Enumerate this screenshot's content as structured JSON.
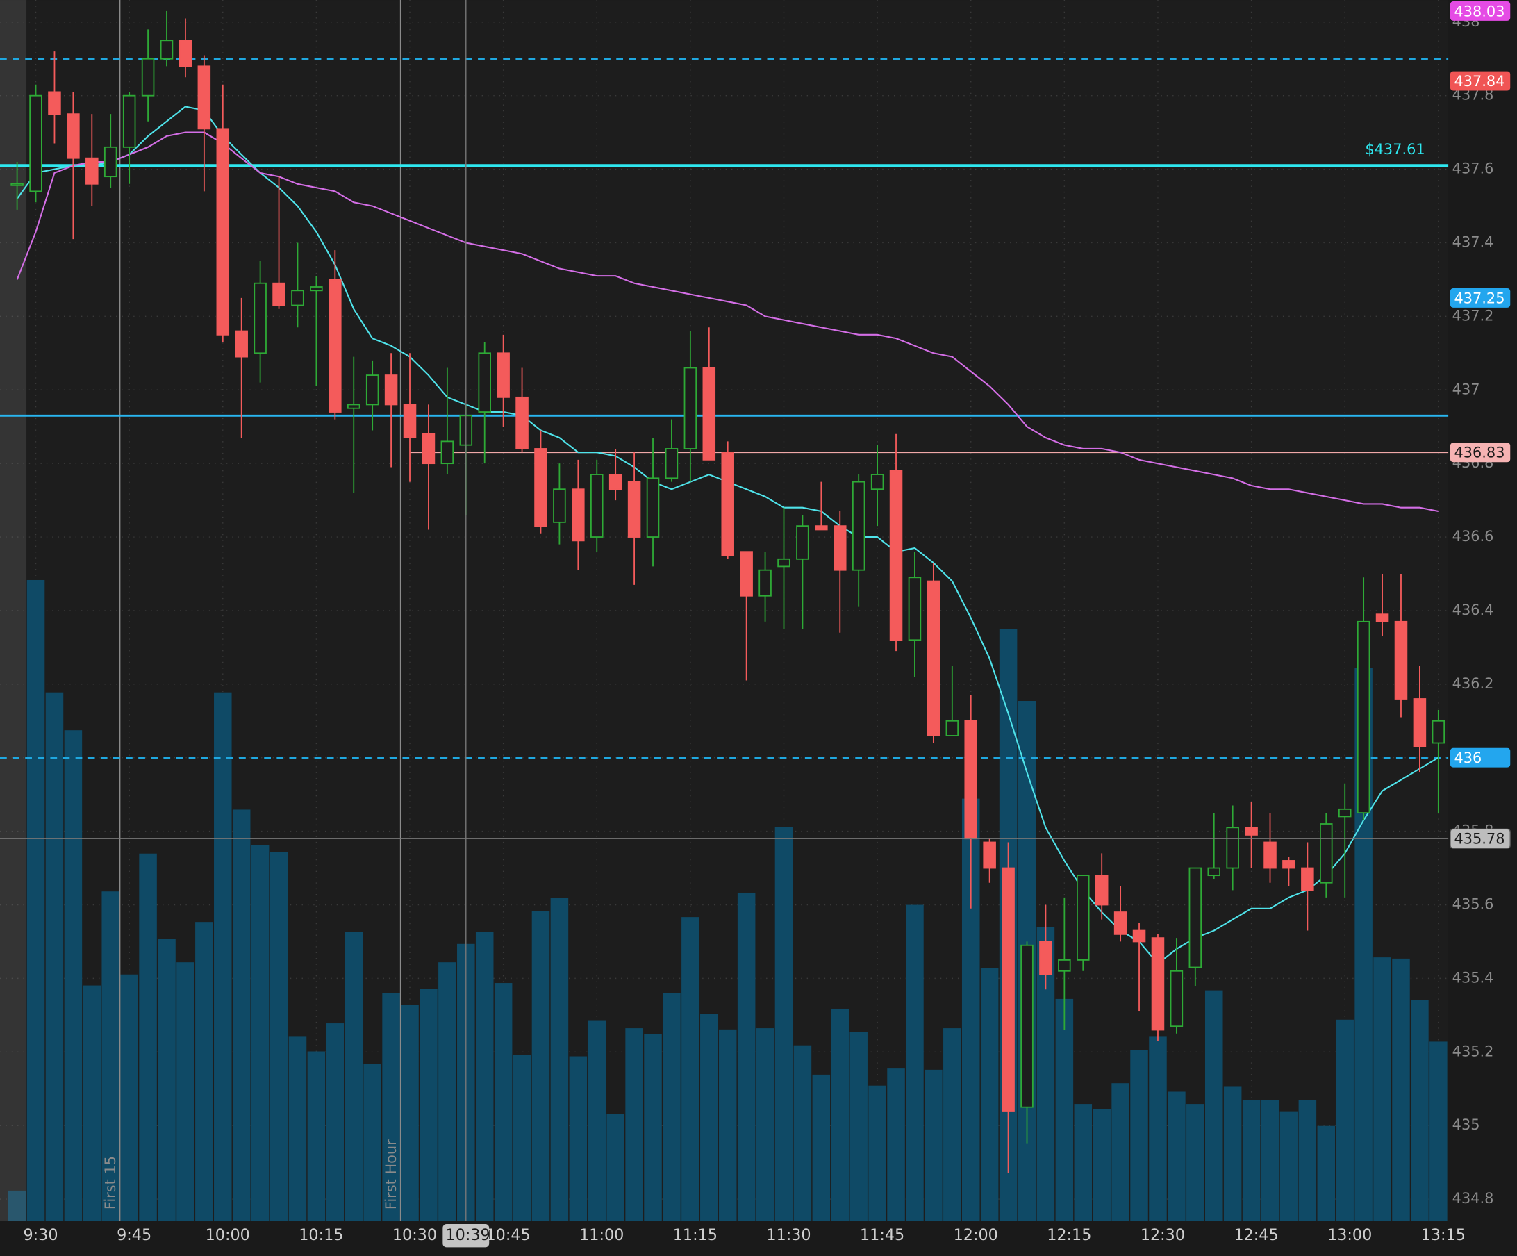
{
  "chart_data": {
    "type": "candlestick",
    "categories": [
      null,
      "9:30",
      null,
      null,
      null,
      null,
      "9:45",
      null,
      null,
      null,
      null,
      "10:00",
      null,
      null,
      null,
      null,
      "10:15",
      null,
      null,
      null,
      null,
      "10:30",
      null,
      null,
      null,
      null,
      "10:45",
      null,
      null,
      null,
      null,
      "11:00",
      null,
      null,
      null,
      null,
      "11:15",
      null,
      null,
      null,
      null,
      "11:30",
      null,
      null,
      null,
      null,
      "11:45",
      null,
      null,
      null,
      null,
      "12:00",
      null,
      null,
      null,
      null,
      "12:15",
      null,
      null,
      null,
      null,
      "12:30",
      null,
      null,
      null,
      null,
      "12:45",
      null,
      null,
      null,
      null,
      "13:00",
      null,
      null,
      null,
      null,
      "13:15"
    ],
    "open": [
      437.56,
      437.54,
      437.81,
      437.75,
      437.63,
      437.58,
      437.66,
      437.8,
      437.9,
      437.95,
      437.88,
      437.71,
      437.16,
      437.1,
      437.29,
      437.23,
      437.27,
      437.3,
      436.95,
      436.96,
      437.04,
      436.96,
      436.88,
      436.8,
      436.85,
      436.94,
      437.1,
      436.98,
      436.84,
      436.64,
      436.73,
      436.6,
      436.77,
      436.75,
      436.6,
      436.76,
      436.84,
      437.06,
      436.83,
      436.56,
      436.44,
      436.52,
      436.54,
      436.63,
      436.63,
      436.51,
      436.73,
      436.78,
      436.32,
      436.48,
      436.06,
      436.1,
      435.77,
      435.7,
      435.05,
      435.5,
      435.42,
      435.45,
      435.68,
      435.58,
      435.53,
      435.51,
      435.27,
      435.43,
      435.68,
      435.7,
      435.81,
      435.77,
      435.72,
      435.7,
      435.66,
      435.84,
      435.85,
      436.39,
      436.37,
      436.16,
      436.04
    ],
    "high": [
      437.62,
      437.83,
      437.92,
      437.81,
      437.75,
      437.75,
      437.81,
      437.98,
      438.03,
      438.01,
      437.91,
      437.83,
      437.25,
      437.35,
      437.58,
      437.4,
      437.31,
      437.38,
      437.09,
      437.08,
      437.1,
      437.1,
      436.96,
      437.06,
      436.96,
      437.13,
      437.15,
      437.06,
      436.89,
      436.8,
      436.81,
      436.81,
      436.84,
      436.83,
      436.87,
      436.92,
      437.16,
      437.17,
      436.86,
      436.56,
      436.56,
      436.68,
      436.66,
      436.75,
      436.67,
      436.77,
      436.85,
      436.88,
      436.56,
      436.53,
      436.25,
      436.17,
      435.78,
      435.77,
      435.5,
      435.6,
      435.62,
      435.68,
      435.74,
      435.65,
      435.55,
      435.52,
      435.51,
      435.7,
      435.85,
      435.87,
      435.88,
      435.85,
      435.73,
      435.77,
      435.85,
      435.93,
      436.49,
      436.5,
      436.5,
      436.25,
      436.13
    ],
    "low": [
      437.49,
      437.51,
      437.67,
      437.41,
      437.5,
      437.55,
      437.56,
      437.73,
      437.88,
      437.85,
      437.54,
      437.13,
      436.87,
      437.02,
      437.22,
      437.17,
      437.01,
      436.92,
      436.72,
      436.89,
      436.79,
      436.75,
      436.62,
      436.77,
      436.66,
      436.8,
      436.9,
      436.83,
      436.61,
      436.58,
      436.51,
      436.56,
      436.7,
      436.47,
      436.52,
      436.75,
      436.75,
      436.81,
      436.54,
      436.21,
      436.37,
      436.35,
      436.35,
      436.62,
      436.34,
      436.41,
      436.63,
      436.29,
      436.22,
      436.04,
      436.06,
      435.59,
      435.66,
      434.87,
      434.95,
      435.37,
      435.26,
      435.42,
      435.56,
      435.5,
      435.31,
      435.23,
      435.25,
      435.38,
      435.67,
      435.64,
      435.7,
      435.66,
      435.65,
      435.53,
      435.62,
      435.62,
      435.83,
      436.33,
      436.11,
      435.96,
      435.85
    ],
    "close": [
      437.56,
      437.8,
      437.75,
      437.63,
      437.56,
      437.66,
      437.8,
      437.9,
      437.95,
      437.88,
      437.71,
      437.15,
      437.09,
      437.29,
      437.23,
      437.27,
      437.28,
      436.94,
      436.96,
      437.04,
      436.96,
      436.87,
      436.8,
      436.86,
      436.93,
      437.1,
      436.98,
      436.84,
      436.63,
      436.73,
      436.59,
      436.77,
      436.73,
      436.6,
      436.76,
      436.84,
      437.06,
      436.81,
      436.55,
      436.44,
      436.51,
      436.54,
      436.63,
      436.62,
      436.51,
      436.75,
      436.77,
      436.32,
      436.49,
      436.06,
      436.1,
      435.78,
      435.7,
      435.04,
      435.49,
      435.41,
      435.45,
      435.68,
      435.6,
      435.52,
      435.5,
      435.26,
      435.42,
      435.7,
      435.7,
      435.81,
      435.79,
      435.7,
      435.7,
      435.64,
      435.82,
      435.86,
      436.37,
      436.37,
      436.16,
      436.03,
      436.1
    ],
    "volume": [
      2.5,
      52.5,
      43.3,
      40.2,
      19.3,
      27.0,
      20.2,
      30.1,
      23.1,
      21.2,
      24.5,
      43.3,
      33.7,
      30.8,
      30.2,
      15.1,
      13.9,
      16.2,
      23.7,
      12.9,
      18.7,
      17.7,
      19.0,
      21.2,
      22.7,
      23.7,
      19.5,
      13.6,
      25.4,
      26.5,
      13.5,
      16.4,
      8.8,
      15.8,
      15.3,
      18.7,
      24.9,
      17.0,
      15.7,
      26.9,
      15.8,
      32.3,
      14.4,
      12.0,
      17.4,
      15.5,
      11.1,
      12.5,
      25.9,
      12.4,
      15.8,
      34.6,
      20.7,
      48.5,
      42.6,
      24.1,
      18.2,
      9.6,
      9.2,
      11.3,
      14.0,
      15.1,
      10.6,
      9.6,
      18.9,
      11.0,
      9.9,
      9.9,
      9.0,
      9.9,
      7.8,
      16.5,
      45.3,
      21.6,
      21.5,
      18.1,
      14.7
    ],
    "overlays": [
      {
        "color": "#4fe3ea",
        "values": [
          437.52,
          437.59,
          437.6,
          437.61,
          437.61,
          437.62,
          437.64,
          437.69,
          437.73,
          437.77,
          437.76,
          437.69,
          437.64,
          437.59,
          437.55,
          437.5,
          437.43,
          437.34,
          437.22,
          437.14,
          437.12,
          437.09,
          437.04,
          436.98,
          436.96,
          436.94,
          436.94,
          436.93,
          436.89,
          436.87,
          436.83,
          436.83,
          436.82,
          436.79,
          436.75,
          436.73,
          436.75,
          436.77,
          436.75,
          436.73,
          436.71,
          436.68,
          436.68,
          436.67,
          436.63,
          436.6,
          436.6,
          436.56,
          436.57,
          436.53,
          436.48,
          436.38,
          436.27,
          436.12,
          435.96,
          435.81,
          435.72,
          435.64,
          435.58,
          435.53,
          435.5,
          435.44,
          435.48,
          435.51,
          435.53,
          435.56,
          435.59,
          435.59,
          435.62,
          435.64,
          435.68,
          435.74,
          435.83,
          435.91,
          435.94,
          435.97,
          436.0
        ]
      },
      {
        "color": "#d46ee6",
        "values": [
          437.3,
          437.43,
          437.59,
          437.61,
          437.62,
          437.62,
          437.64,
          437.66,
          437.69,
          437.7,
          437.7,
          437.67,
          437.63,
          437.59,
          437.58,
          437.56,
          437.55,
          437.54,
          437.51,
          437.5,
          437.48,
          437.46,
          437.44,
          437.42,
          437.4,
          437.39,
          437.38,
          437.37,
          437.35,
          437.33,
          437.32,
          437.31,
          437.31,
          437.29,
          437.28,
          437.27,
          437.26,
          437.25,
          437.24,
          437.23,
          437.2,
          437.19,
          437.18,
          437.17,
          437.16,
          437.15,
          437.15,
          437.14,
          437.12,
          437.1,
          437.09,
          437.05,
          437.01,
          436.96,
          436.9,
          436.87,
          436.85,
          436.84,
          436.84,
          436.83,
          436.81,
          436.8,
          436.79,
          436.78,
          436.77,
          436.76,
          436.74,
          436.73,
          436.73,
          436.72,
          436.71,
          436.7,
          436.69,
          436.69,
          436.68,
          436.68,
          436.67
        ]
      }
    ],
    "up_color": "#2eaa36",
    "down_color": "#f45b5b",
    "volume_color": "#0f4a66",
    "ylim": [
      434.74,
      438.06
    ],
    "yticks": [
      434.8,
      435,
      435.2,
      435.4,
      435.6,
      435.8,
      436,
      436.2,
      436.4,
      436.6,
      436.8,
      437,
      437.2,
      437.4,
      437.6,
      437.8,
      438
    ],
    "vlim": [
      0,
      100
    ],
    "grid": true,
    "levels": [
      {
        "value": 437.9,
        "color": "#1fa8e0",
        "style": "dashed"
      },
      {
        "value": 437.61,
        "color": "#2ee8f0",
        "style": "thick",
        "label": "$437.61"
      },
      {
        "value": 436.93,
        "color": "#29b6f0",
        "style": "solid"
      },
      {
        "value": 436.83,
        "color": "#f0a8a8",
        "style": "thin",
        "from": "10:30"
      },
      {
        "value": 436,
        "color": "#1fa8e0",
        "style": "dashed"
      }
    ],
    "tags": [
      {
        "value": 438.03,
        "color": "#e54be5"
      },
      {
        "value": 437.84,
        "color": "#f05555"
      },
      {
        "value": 437.25,
        "color": "#23a6ee"
      },
      {
        "value": 436.83,
        "color": "#f6b3b3"
      },
      {
        "value": 436,
        "color": "#23a6ee"
      }
    ],
    "markers": [
      {
        "at": "9:45",
        "label": "First 15"
      },
      {
        "at": "10:30",
        "label": "First Hour"
      }
    ],
    "crosshair": {
      "at": "10:39",
      "value": 435.78
    }
  }
}
